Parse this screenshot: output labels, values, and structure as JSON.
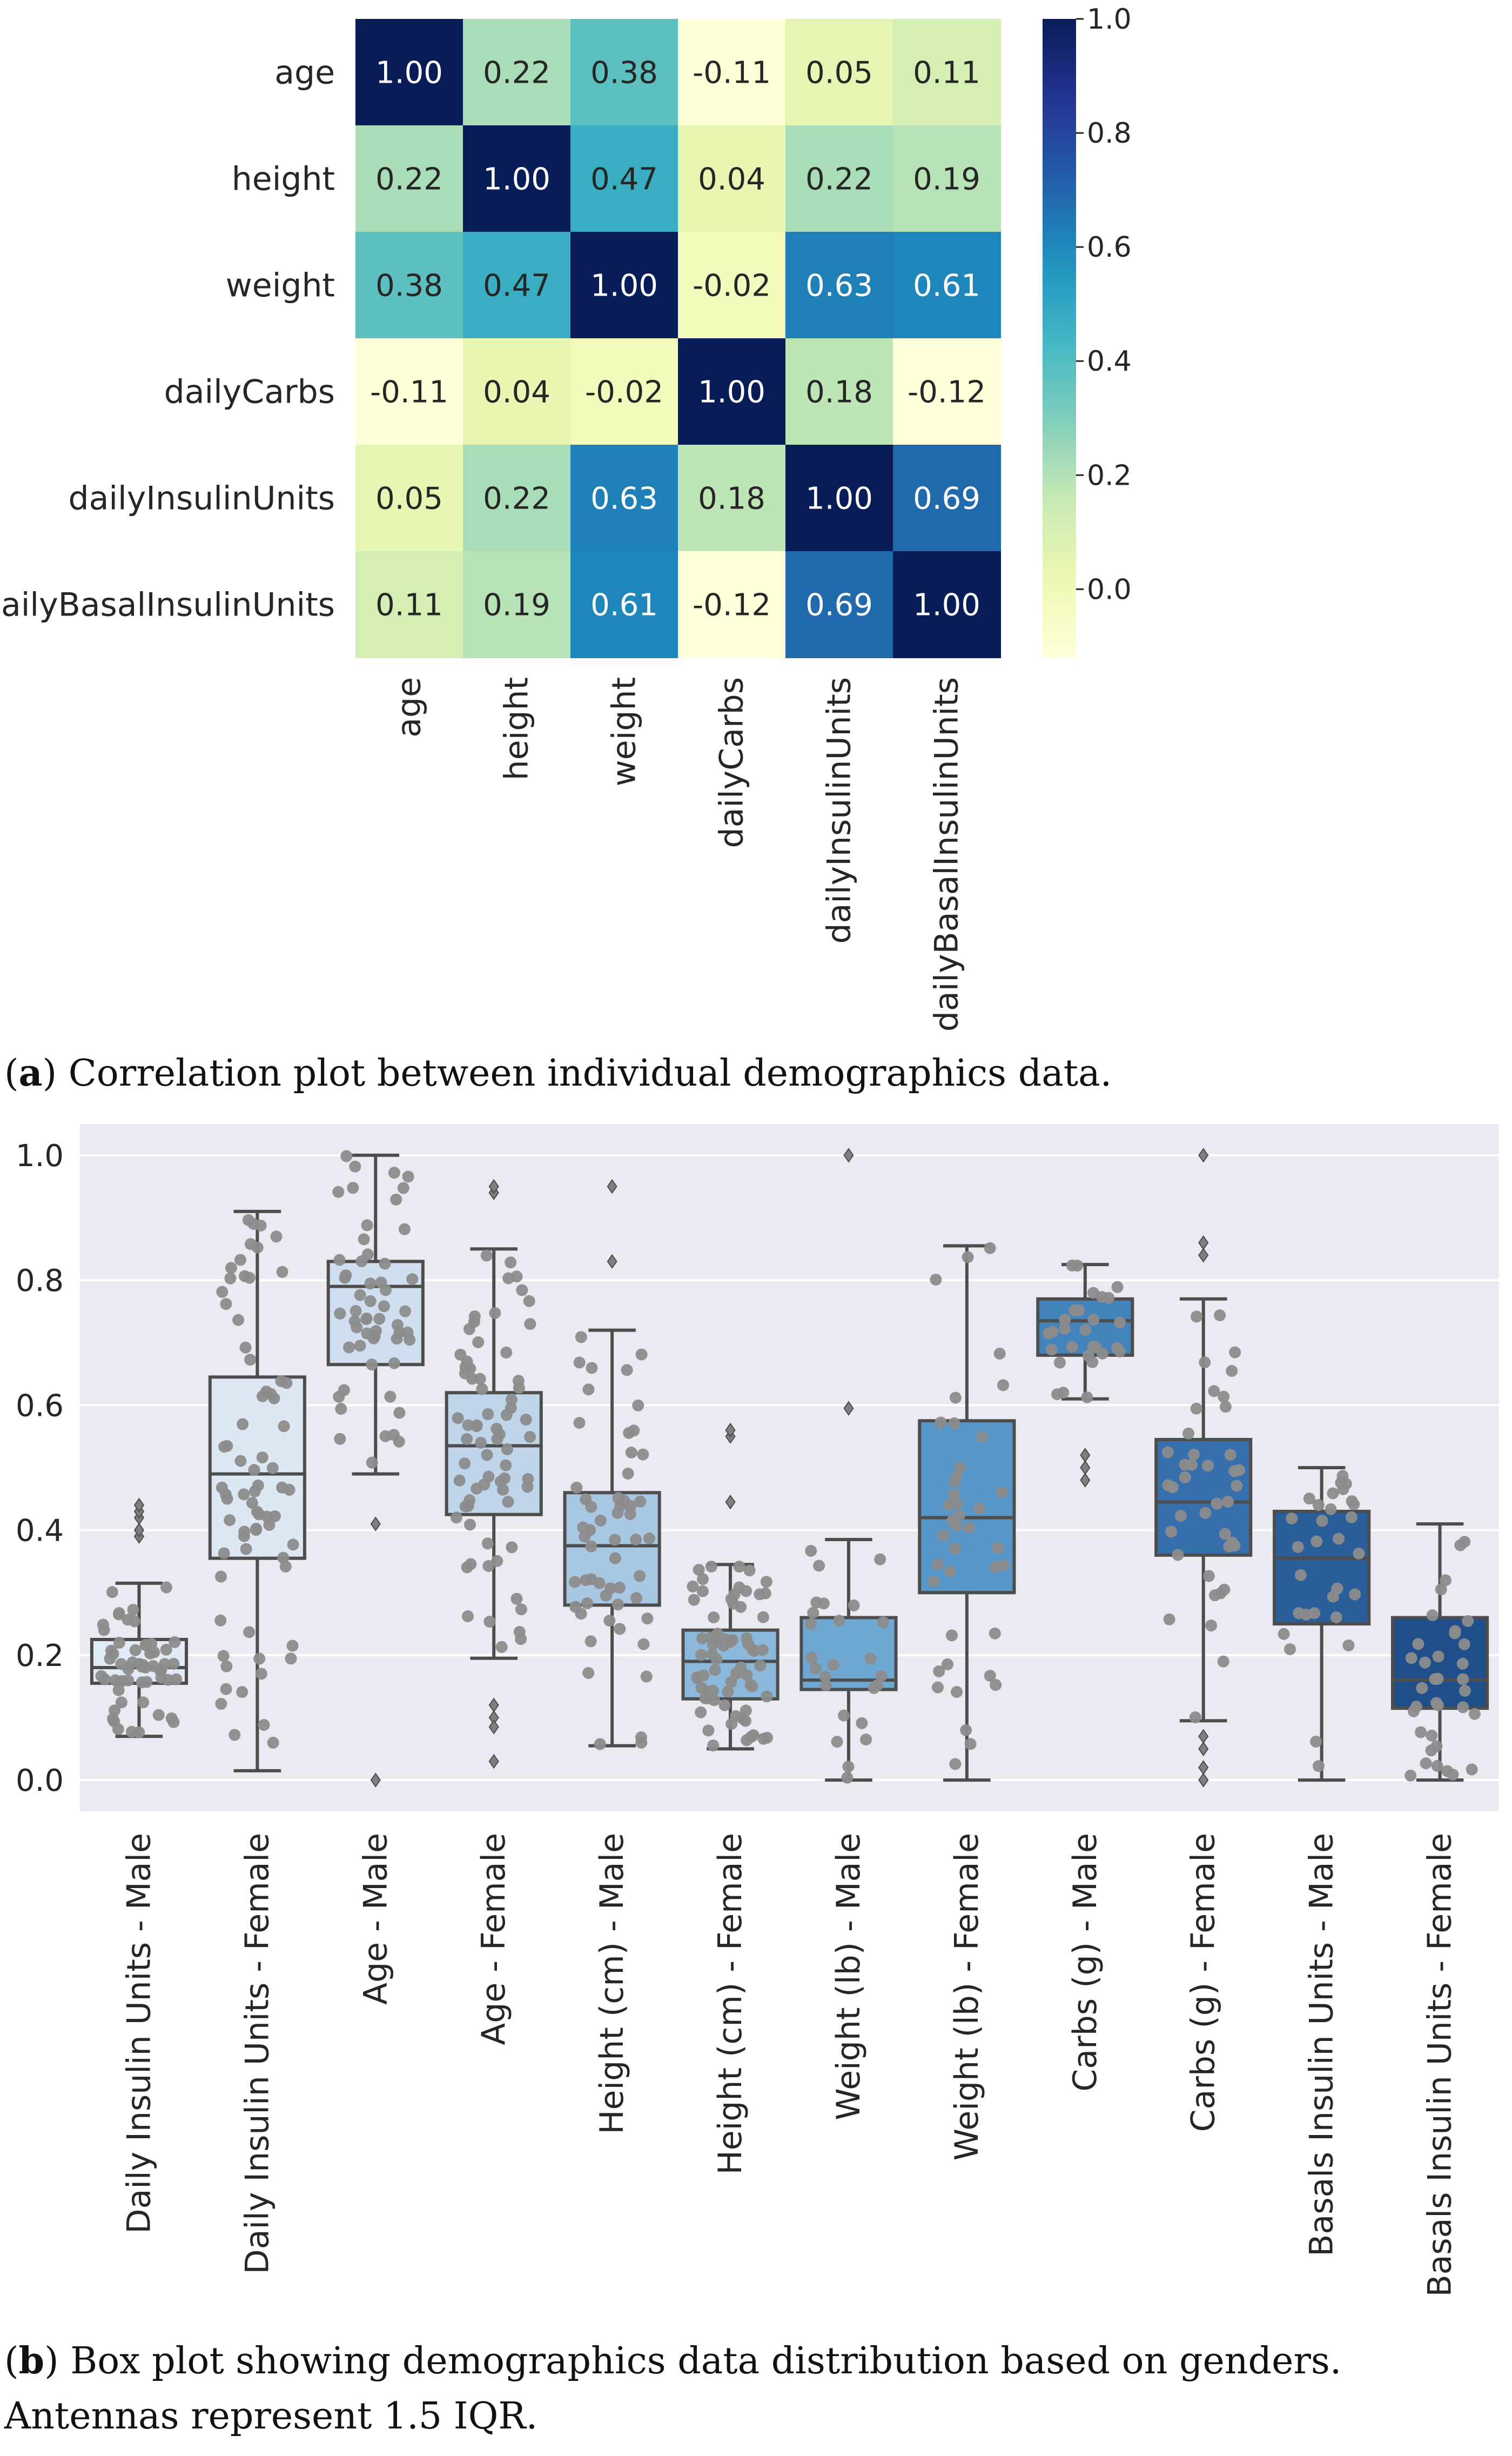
{
  "figure_a": {
    "caption_label": "a",
    "caption_text": "Correlation plot between individual demographics data."
  },
  "figure_b": {
    "caption_label": "b",
    "caption_text": "Box plot showing demographics data distribution based on genders.  Antennas represent 1.5 IQR."
  },
  "chart_data": [
    {
      "type": "heatmap",
      "title": "",
      "rows": [
        "age",
        "height",
        "weight",
        "dailyCarbs",
        "dailyInsulinUnits",
        "dailyBasalInsulinUnits"
      ],
      "columns": [
        "age",
        "height",
        "weight",
        "dailyCarbs",
        "dailyInsulinUnits",
        "dailyBasalInsulinUnits"
      ],
      "values": [
        [
          1.0,
          0.22,
          0.38,
          -0.11,
          0.05,
          0.11
        ],
        [
          0.22,
          1.0,
          0.47,
          0.04,
          0.22,
          0.19
        ],
        [
          0.38,
          0.47,
          1.0,
          -0.02,
          0.63,
          0.61
        ],
        [
          -0.11,
          0.04,
          -0.02,
          1.0,
          0.18,
          -0.12
        ],
        [
          0.05,
          0.22,
          0.63,
          0.18,
          1.0,
          0.69
        ],
        [
          0.11,
          0.19,
          0.61,
          -0.12,
          0.69,
          1.0
        ]
      ],
      "value_labels": [
        [
          "1.00",
          "0.22",
          "0.38",
          "-0.11",
          "0.05",
          "0.11"
        ],
        [
          "0.22",
          "1.00",
          "0.47",
          "0.04",
          "0.22",
          "0.19"
        ],
        [
          "0.38",
          "0.47",
          "1.00",
          "-0.02",
          "0.63",
          "0.61"
        ],
        [
          "-0.11",
          "0.04",
          "-0.02",
          "1.00",
          "0.18",
          "-0.12"
        ],
        [
          "0.05",
          "0.22",
          "0.63",
          "0.18",
          "1.00",
          "0.69"
        ],
        [
          "0.11",
          "0.19",
          "0.61",
          "-0.12",
          "0.69",
          "1.00"
        ]
      ],
      "colormap": "YlGnBu",
      "colorbar_range": [
        -0.12,
        1.0
      ],
      "colorbar_ticks": [
        0.0,
        0.2,
        0.4,
        0.6,
        0.8,
        1.0
      ],
      "colorbar_tick_labels": [
        "0.0",
        "0.2",
        "0.4",
        "0.6",
        "0.8",
        "1.0"
      ]
    },
    {
      "type": "box",
      "title": "",
      "xlabel": "",
      "ylabel": "",
      "ylim": [
        -0.05,
        1.05
      ],
      "yticks": [
        0.0,
        0.2,
        0.4,
        0.6,
        0.8,
        1.0
      ],
      "ytick_labels": [
        "0.0",
        "0.2",
        "0.4",
        "0.6",
        "0.8",
        "1.0"
      ],
      "grid": true,
      "categories": [
        "Daily Insulin Units - Male",
        "Daily Insulin Units - Female",
        "Age - Male",
        "Age - Female",
        "Height (cm) - Male",
        "Height (cm) - Female",
        "Weight (lb) - Male",
        "Weight (lb) - Female",
        "Carbs (g) - Male",
        "Carbs (g) - Female",
        "Basals Insulin Units - Male",
        "Basals Insulin Units - Female"
      ],
      "box_colors": [
        "#e0ebf6",
        "#dde8f4",
        "#cfdff0",
        "#bfd5ea",
        "#a7c7e2",
        "#8cb9db",
        "#6fa8d3",
        "#5796c8",
        "#4383bb",
        "#3670ac",
        "#2a5e9a",
        "#1f4f8a"
      ],
      "boxes": [
        {
          "whisker_low": 0.07,
          "q1": 0.155,
          "median": 0.18,
          "q3": 0.225,
          "whisker_high": 0.315,
          "outliers": [
            0.39,
            0.4,
            0.42,
            0.43,
            0.44
          ]
        },
        {
          "whisker_low": 0.015,
          "q1": 0.355,
          "median": 0.49,
          "q3": 0.645,
          "whisker_high": 0.91,
          "outliers": []
        },
        {
          "whisker_low": 0.49,
          "q1": 0.665,
          "median": 0.79,
          "q3": 0.83,
          "whisker_high": 1.0,
          "outliers": [
            0.41,
            0.0
          ]
        },
        {
          "whisker_low": 0.195,
          "q1": 0.425,
          "median": 0.535,
          "q3": 0.62,
          "whisker_high": 0.85,
          "outliers": [
            0.94,
            0.95,
            0.12,
            0.1,
            0.085,
            0.03
          ]
        },
        {
          "whisker_low": 0.055,
          "q1": 0.28,
          "median": 0.375,
          "q3": 0.46,
          "whisker_high": 0.72,
          "outliers": [
            0.95,
            0.83
          ]
        },
        {
          "whisker_low": 0.05,
          "q1": 0.13,
          "median": 0.19,
          "q3": 0.24,
          "whisker_high": 0.345,
          "outliers": [
            0.55,
            0.56,
            0.445
          ]
        },
        {
          "whisker_low": 0.0,
          "q1": 0.145,
          "median": 0.16,
          "q3": 0.26,
          "whisker_high": 0.385,
          "outliers": [
            1.0,
            0.595
          ]
        },
        {
          "whisker_low": 0.0,
          "q1": 0.3,
          "median": 0.42,
          "q3": 0.575,
          "whisker_high": 0.855,
          "outliers": []
        },
        {
          "whisker_low": 0.61,
          "q1": 0.68,
          "median": 0.735,
          "q3": 0.77,
          "whisker_high": 0.825,
          "outliers": [
            0.48,
            0.5,
            0.52
          ]
        },
        {
          "whisker_low": 0.095,
          "q1": 0.36,
          "median": 0.445,
          "q3": 0.545,
          "whisker_high": 0.77,
          "outliers": [
            1.0,
            0.86,
            0.84,
            0.07,
            0.05,
            0.02,
            0.0
          ]
        },
        {
          "whisker_low": 0.0,
          "q1": 0.25,
          "median": 0.355,
          "q3": 0.43,
          "whisker_high": 0.5,
          "outliers": []
        },
        {
          "whisker_low": 0.0,
          "q1": 0.115,
          "median": 0.16,
          "q3": 0.26,
          "whisker_high": 0.41,
          "outliers": []
        }
      ],
      "swarm_points_per_box": [
        55,
        70,
        55,
        70,
        55,
        70,
        25,
        40,
        28,
        40,
        30,
        35
      ]
    }
  ]
}
